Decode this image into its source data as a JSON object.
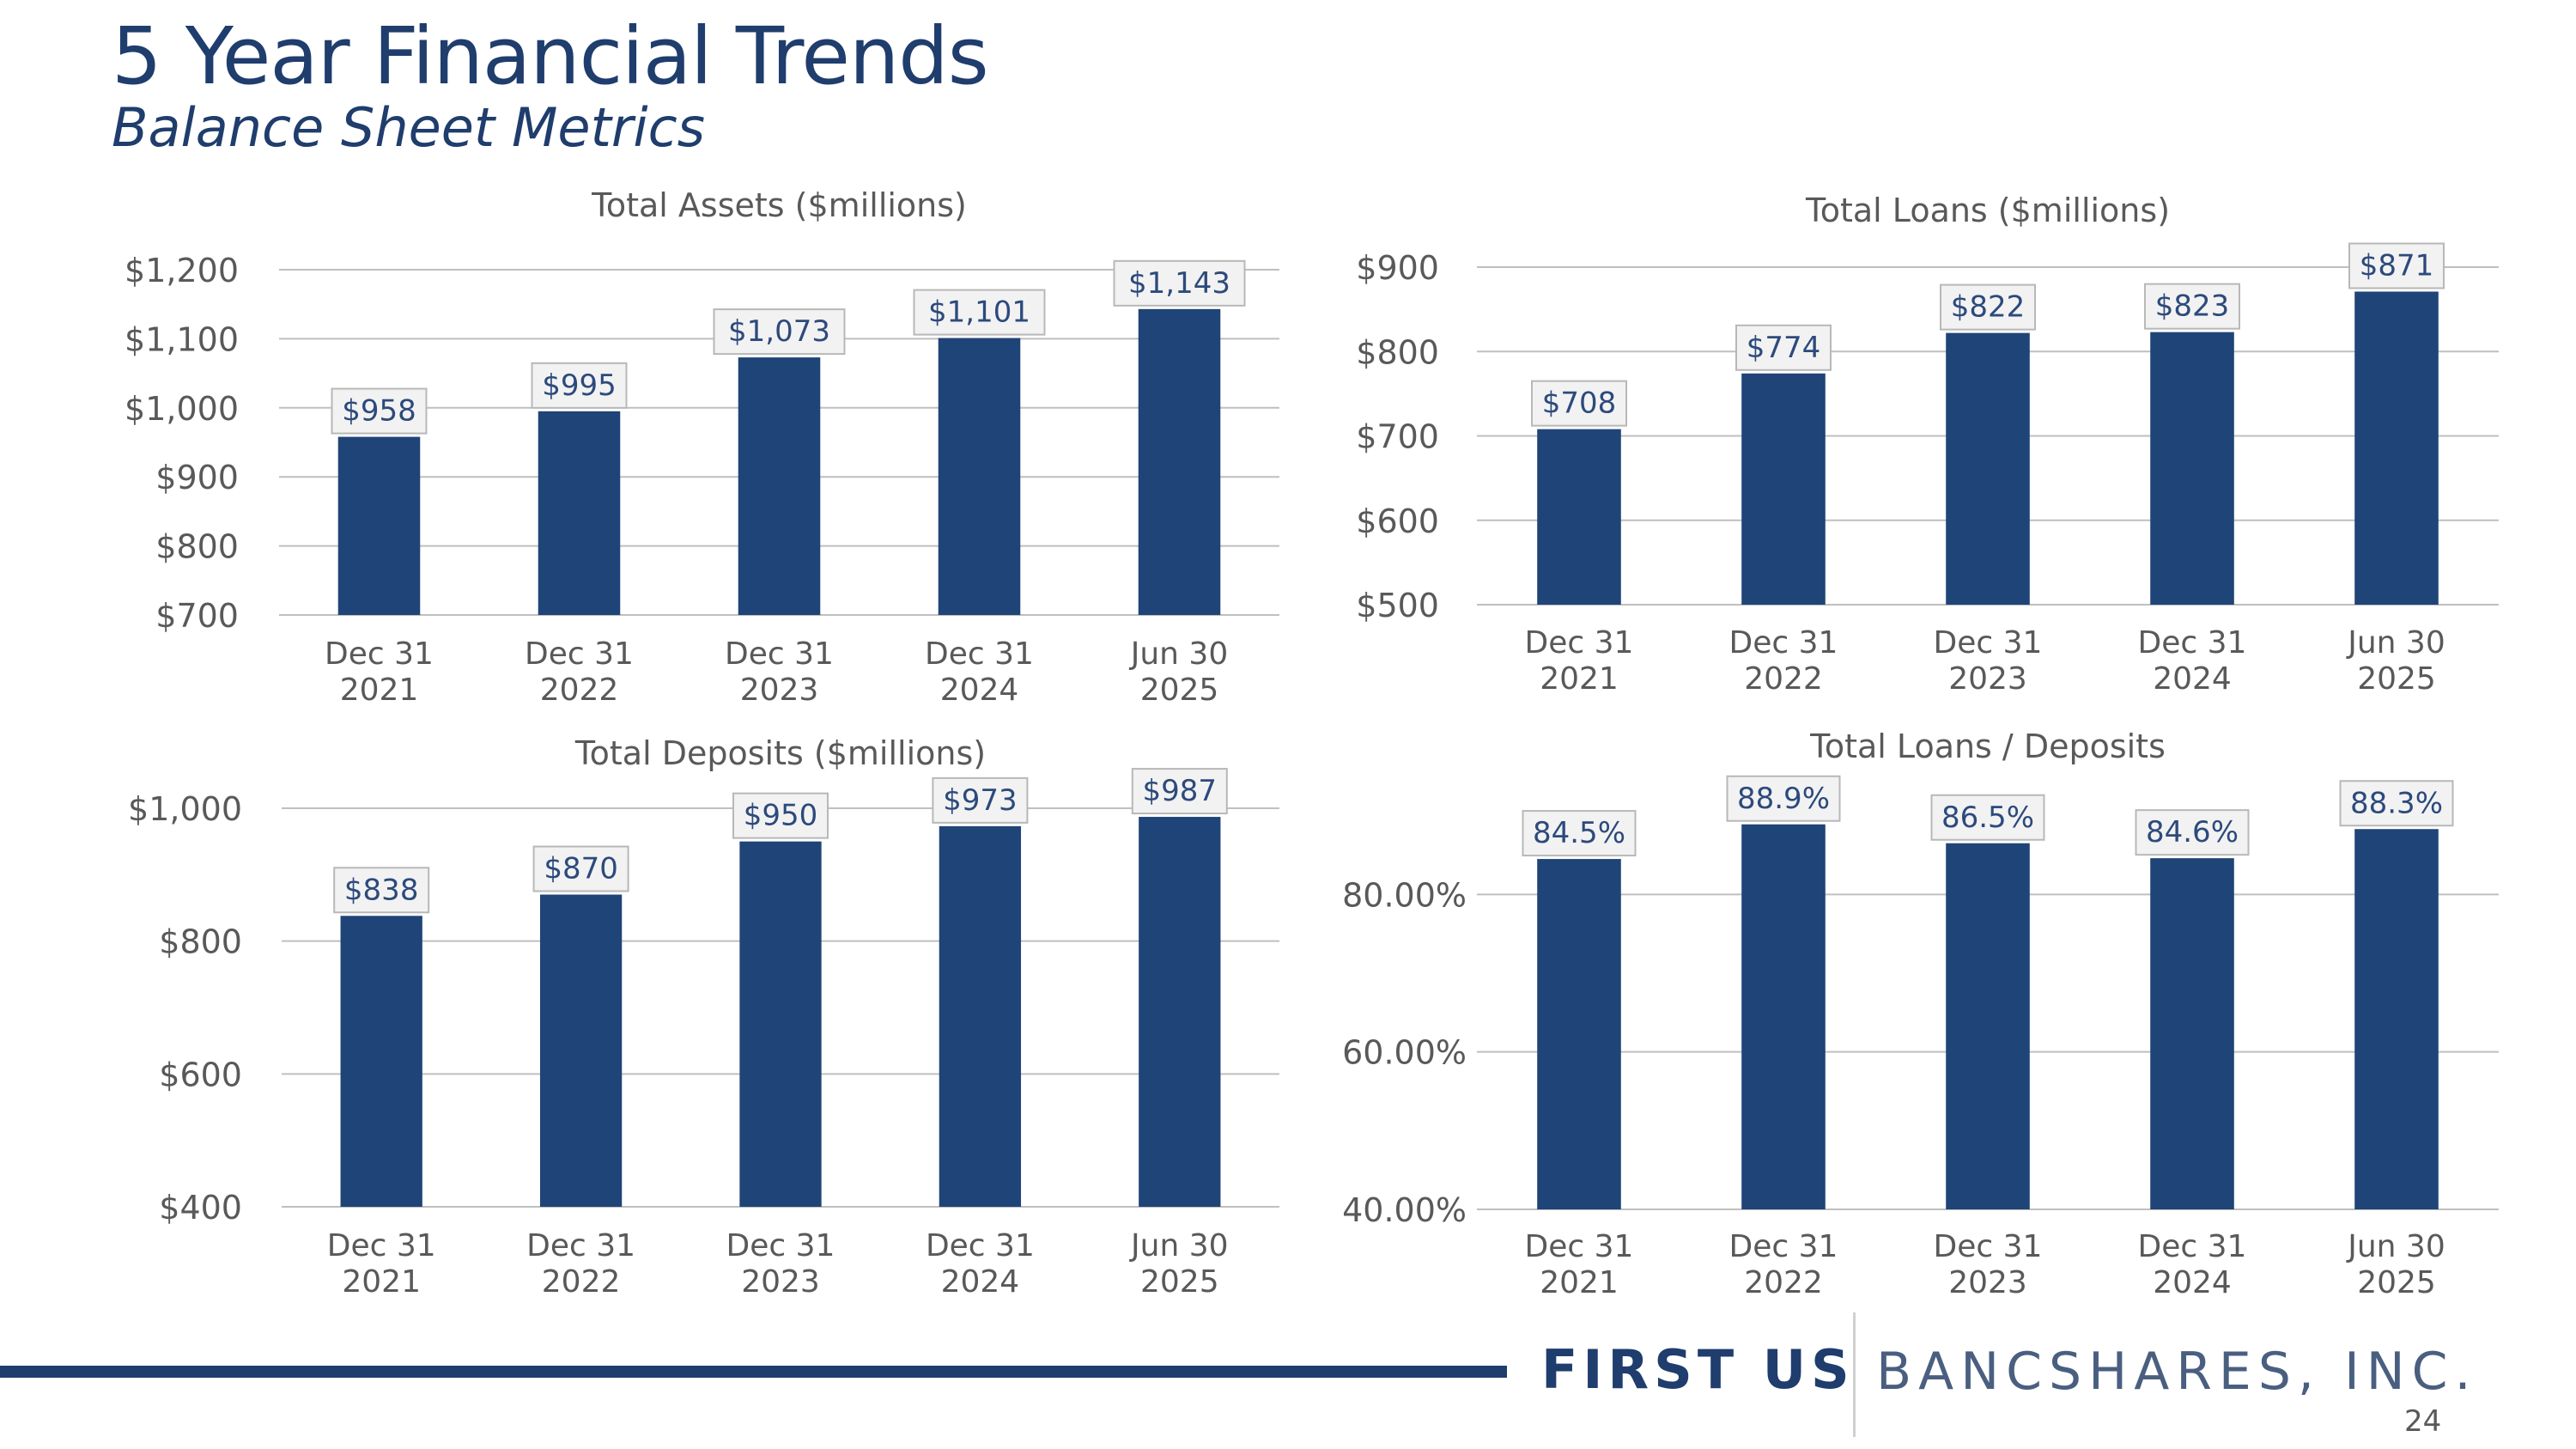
{
  "header": {
    "title": "5 Year Financial Trends",
    "subtitle": "Balance Sheet Metrics"
  },
  "footer": {
    "brand_bold": "FIRST US",
    "brand_rest": "BANCSHARES, INC.",
    "page_number": "24"
  },
  "colors": {
    "bar": "#1f4477",
    "label_border": "#b8b8b8",
    "label_fill": "#f2f2f2",
    "grid": "#bfbfbf",
    "brand": "#1f3d6d"
  },
  "chart_data": [
    {
      "type": "bar",
      "title": "Total Assets ($millions)",
      "categories": [
        [
          "Dec 31",
          "2021"
        ],
        [
          "Dec 31",
          "2022"
        ],
        [
          "Dec 31",
          "2023"
        ],
        [
          "Dec 31",
          "2024"
        ],
        [
          "Jun 30",
          "2025"
        ]
      ],
      "values": [
        958,
        995,
        1073,
        1101,
        1143
      ],
      "data_labels": [
        "$958",
        "$995",
        "$1,073",
        "$1,101",
        "$1,143"
      ],
      "yticks": [
        700,
        800,
        900,
        1000,
        1100,
        1200
      ],
      "ytick_labels": [
        "$700",
        "$800",
        "$900",
        "$1,000",
        "$1,100",
        "$1,200"
      ],
      "ylim": [
        700,
        1200
      ]
    },
    {
      "type": "bar",
      "title": "Total Loans ($millions)",
      "categories": [
        [
          "Dec 31",
          "2021"
        ],
        [
          "Dec 31",
          "2022"
        ],
        [
          "Dec 31",
          "2023"
        ],
        [
          "Dec 31",
          "2024"
        ],
        [
          "Jun 30",
          "2025"
        ]
      ],
      "values": [
        708,
        774,
        822,
        823,
        871
      ],
      "data_labels": [
        "$708",
        "$774",
        "$822",
        "$823",
        "$871"
      ],
      "yticks": [
        500,
        600,
        700,
        800,
        900
      ],
      "ytick_labels": [
        "$500",
        "$600",
        "$700",
        "$800",
        "$900"
      ],
      "ylim": [
        500,
        900
      ]
    },
    {
      "type": "bar",
      "title": "Total Deposits ($millions)",
      "categories": [
        [
          "Dec 31",
          "2021"
        ],
        [
          "Dec 31",
          "2022"
        ],
        [
          "Dec 31",
          "2023"
        ],
        [
          "Dec 31",
          "2024"
        ],
        [
          "Jun 30",
          "2025"
        ]
      ],
      "values": [
        838,
        870,
        950,
        973,
        987
      ],
      "data_labels": [
        "$838",
        "$870",
        "$950",
        "$973",
        "$987"
      ],
      "yticks": [
        400,
        600,
        800,
        1000
      ],
      "ytick_labels": [
        "$400",
        "$600",
        "$800",
        "$1,000"
      ],
      "ylim": [
        400,
        1000
      ]
    },
    {
      "type": "bar",
      "title": "Total Loans / Deposits",
      "categories": [
        [
          "Dec 31",
          "2021"
        ],
        [
          "Dec 31",
          "2022"
        ],
        [
          "Dec 31",
          "2023"
        ],
        [
          "Dec 31",
          "2024"
        ],
        [
          "Jun 30",
          "2025"
        ]
      ],
      "values": [
        84.5,
        88.9,
        86.5,
        84.6,
        88.3
      ],
      "data_labels": [
        "84.5%",
        "88.9%",
        "86.5%",
        "84.6%",
        "88.3%"
      ],
      "yticks": [
        40,
        60,
        80
      ],
      "ytick_labels": [
        "40.00%",
        "60.00%",
        "80.00%"
      ],
      "ylim": [
        40,
        100
      ]
    }
  ]
}
